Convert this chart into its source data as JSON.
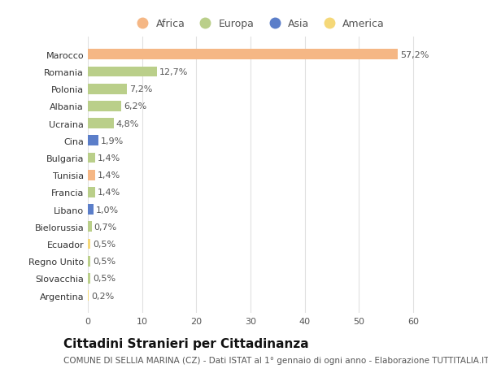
{
  "countries": [
    "Argentina",
    "Slovacchia",
    "Regno Unito",
    "Ecuador",
    "Bielorussia",
    "Libano",
    "Francia",
    "Tunisia",
    "Bulgaria",
    "Cina",
    "Ucraina",
    "Albania",
    "Polonia",
    "Romania",
    "Marocco"
  ],
  "values": [
    0.2,
    0.5,
    0.5,
    0.5,
    0.7,
    1.0,
    1.4,
    1.4,
    1.4,
    1.9,
    4.8,
    6.2,
    7.2,
    12.7,
    57.2
  ],
  "labels": [
    "0,2%",
    "0,5%",
    "0,5%",
    "0,5%",
    "0,7%",
    "1,0%",
    "1,4%",
    "1,4%",
    "1,4%",
    "1,9%",
    "4,8%",
    "6,2%",
    "7,2%",
    "12,7%",
    "57,2%"
  ],
  "continents": [
    "America",
    "Europa",
    "Europa",
    "America",
    "Europa",
    "Asia",
    "Europa",
    "Africa",
    "Europa",
    "Asia",
    "Europa",
    "Europa",
    "Europa",
    "Europa",
    "Africa"
  ],
  "continent_colors": {
    "Africa": "#F5B785",
    "Europa": "#BACF8A",
    "Asia": "#5B7EC9",
    "America": "#F5D878"
  },
  "legend_order": [
    "Africa",
    "Europa",
    "Asia",
    "America"
  ],
  "xlim": [
    0,
    63
  ],
  "xticks": [
    0,
    10,
    20,
    30,
    40,
    50,
    60
  ],
  "bg_color": "#ffffff",
  "grid_color": "#e0e0e0",
  "bar_height": 0.6,
  "title": "Cittadini Stranieri per Cittadinanza",
  "subtitle": "COMUNE DI SELLIA MARINA (CZ) - Dati ISTAT al 1° gennaio di ogni anno - Elaborazione TUTTITALIA.IT",
  "title_fontsize": 11,
  "subtitle_fontsize": 7.5,
  "label_fontsize": 8,
  "tick_fontsize": 8,
  "legend_fontsize": 9
}
